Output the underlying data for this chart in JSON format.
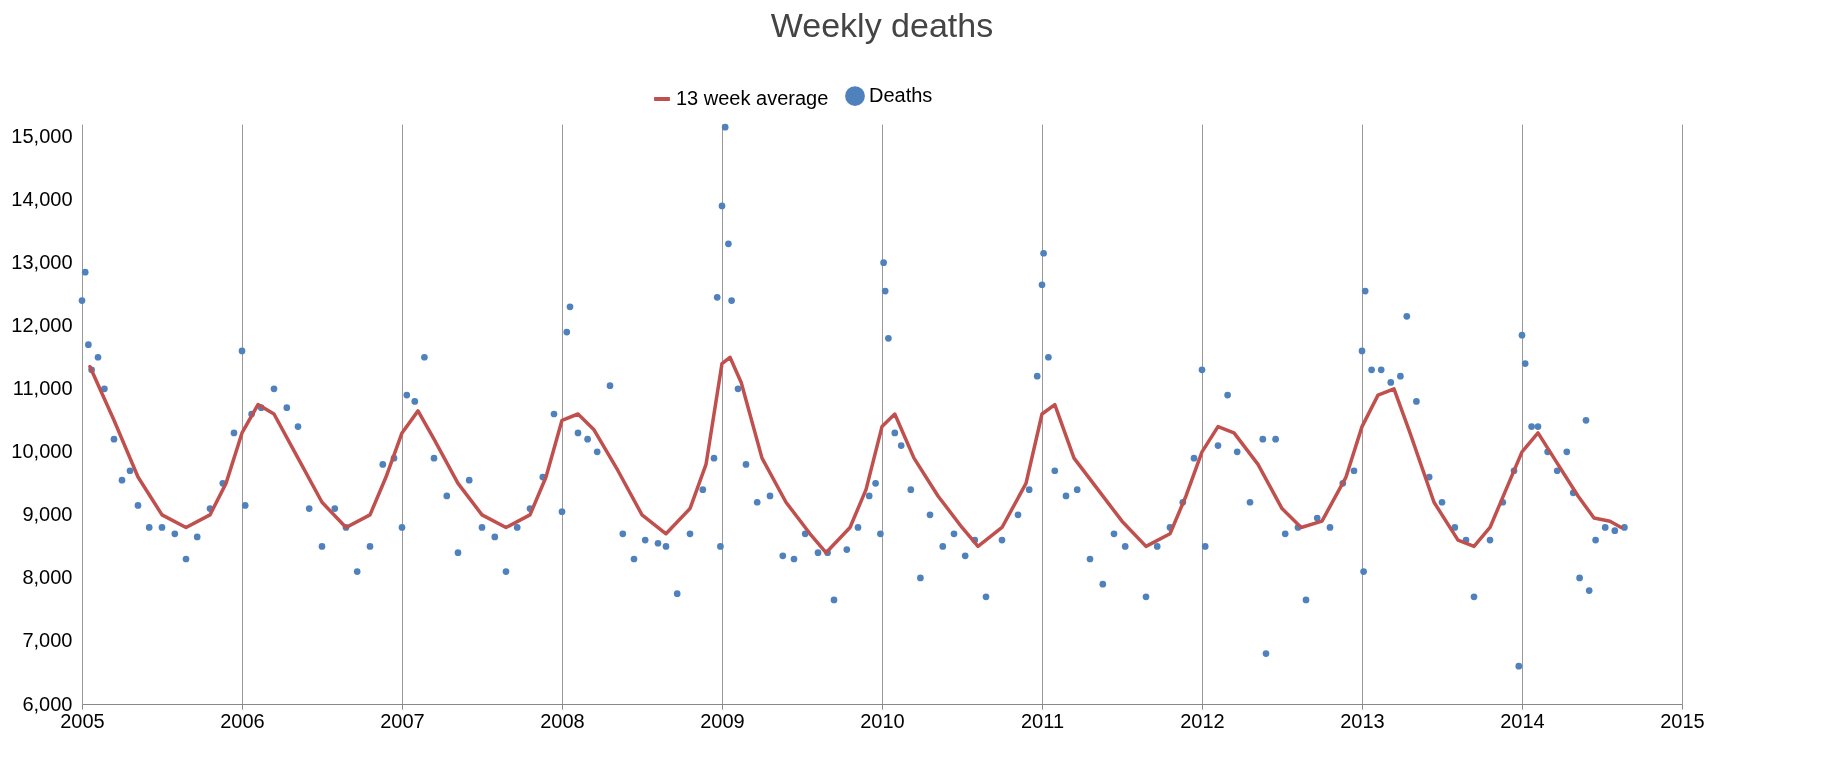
{
  "chart_data": {
    "type": "scatter",
    "title": "Weekly deaths",
    "xlim": [
      2005,
      2015
    ],
    "xticks": [
      2005,
      2006,
      2007,
      2008,
      2009,
      2010,
      2011,
      2012,
      2013,
      2014,
      2015
    ],
    "ylim": [
      6000,
      15200
    ],
    "yticks": [
      {
        "value": 6000,
        "label": "6,000"
      },
      {
        "value": 7000,
        "label": "7,000"
      },
      {
        "value": 8000,
        "label": "8,000"
      },
      {
        "value": 9000,
        "label": "9,000"
      },
      {
        "value": 10000,
        "label": "10,000"
      },
      {
        "value": 11000,
        "label": "11,000"
      },
      {
        "value": 12000,
        "label": "12,000"
      },
      {
        "value": 13000,
        "label": "13,000"
      },
      {
        "value": 14000,
        "label": "14,000"
      },
      {
        "value": 15000,
        "label": "15,000"
      }
    ],
    "grid": "x",
    "legend": "top",
    "series": [
      {
        "name": "13 week average",
        "type": "line",
        "color": "#c0504d",
        "x": [
          2005.05,
          2005.2,
          2005.35,
          2005.5,
          2005.65,
          2005.8,
          2005.9,
          2006.0,
          2006.1,
          2006.2,
          2006.35,
          2006.5,
          2006.65,
          2006.8,
          2006.9,
          2007.0,
          2007.1,
          2007.2,
          2007.35,
          2007.5,
          2007.65,
          2007.8,
          2007.9,
          2008.0,
          2008.1,
          2008.2,
          2008.35,
          2008.5,
          2008.65,
          2008.8,
          2008.9,
          2009.0,
          2009.05,
          2009.12,
          2009.25,
          2009.4,
          2009.55,
          2009.65,
          2009.8,
          2009.9,
          2010.0,
          2010.08,
          2010.2,
          2010.35,
          2010.5,
          2010.6,
          2010.75,
          2010.9,
          2011.0,
          2011.08,
          2011.2,
          2011.35,
          2011.5,
          2011.65,
          2011.8,
          2011.9,
          2012.0,
          2012.1,
          2012.2,
          2012.35,
          2012.5,
          2012.62,
          2012.75,
          2012.9,
          2013.0,
          2013.1,
          2013.2,
          2013.3,
          2013.45,
          2013.6,
          2013.7,
          2013.8,
          2013.9,
          2014.0,
          2014.1,
          2014.2,
          2014.35,
          2014.45,
          2014.55,
          2014.62
        ],
        "values": [
          11350,
          10500,
          9600,
          9000,
          8800,
          9000,
          9500,
          10300,
          10750,
          10600,
          9900,
          9200,
          8800,
          9000,
          9600,
          10300,
          10650,
          10200,
          9500,
          9000,
          8800,
          9000,
          9600,
          10500,
          10600,
          10350,
          9700,
          9000,
          8700,
          9100,
          9800,
          11400,
          11500,
          11100,
          9900,
          9200,
          8700,
          8400,
          8800,
          9400,
          10400,
          10600,
          9900,
          9300,
          8800,
          8500,
          8800,
          9500,
          10600,
          10750,
          9900,
          9400,
          8900,
          8500,
          8700,
          9300,
          10000,
          10400,
          10300,
          9800,
          9100,
          8800,
          8900,
          9600,
          10400,
          10900,
          11000,
          10300,
          9200,
          8600,
          8500,
          8800,
          9400,
          10000,
          10300,
          9900,
          9300,
          8950,
          8900,
          8800
        ]
      },
      {
        "name": "Deaths",
        "color": "#4f81bd",
        "x": [
          2005.0,
          2005.02,
          2005.04,
          2005.06,
          2005.1,
          2005.14,
          2005.2,
          2005.25,
          2005.3,
          2005.35,
          2005.42,
          2005.5,
          2005.58,
          2005.65,
          2005.72,
          2005.8,
          2005.88,
          2005.95,
          2006.0,
          2006.02,
          2006.06,
          2006.12,
          2006.2,
          2006.28,
          2006.35,
          2006.42,
          2006.5,
          2006.58,
          2006.65,
          2006.72,
          2006.8,
          2006.88,
          2006.95,
          2007.0,
          2007.03,
          2007.08,
          2007.14,
          2007.2,
          2007.28,
          2007.35,
          2007.42,
          2007.5,
          2007.58,
          2007.65,
          2007.72,
          2007.8,
          2007.88,
          2007.95,
          2008.0,
          2008.03,
          2008.05,
          2008.1,
          2008.16,
          2008.22,
          2008.3,
          2008.38,
          2008.45,
          2008.52,
          2008.6,
          2008.65,
          2008.72,
          2008.8,
          2008.88,
          2008.95,
          2008.97,
          2008.99,
          2009.0,
          2009.02,
          2009.04,
          2009.06,
          2009.1,
          2009.15,
          2009.22,
          2009.3,
          2009.38,
          2009.45,
          2009.52,
          2009.6,
          2009.66,
          2009.7,
          2009.78,
          2009.85,
          2009.92,
          2009.96,
          2009.99,
          2010.01,
          2010.02,
          2010.04,
          2010.08,
          2010.12,
          2010.18,
          2010.24,
          2010.3,
          2010.38,
          2010.45,
          2010.52,
          2010.58,
          2010.65,
          2010.75,
          2010.85,
          2010.92,
          2010.97,
          2011.0,
          2011.01,
          2011.04,
          2011.08,
          2011.15,
          2011.22,
          2011.3,
          2011.38,
          2011.45,
          2011.52,
          2011.65,
          2011.72,
          2011.8,
          2011.88,
          2011.95,
          2012.0,
          2012.02,
          2012.1,
          2012.16,
          2012.22,
          2012.3,
          2012.38,
          2012.4,
          2012.46,
          2012.52,
          2012.6,
          2012.65,
          2012.72,
          2012.8,
          2012.88,
          2012.95,
          2013.0,
          2013.01,
          2013.02,
          2013.06,
          2013.12,
          2013.18,
          2013.24,
          2013.28,
          2013.34,
          2013.42,
          2013.5,
          2013.58,
          2013.65,
          2013.7,
          2013.8,
          2013.88,
          2013.95,
          2013.98,
          2014.0,
          2014.02,
          2014.06,
          2014.1,
          2014.16,
          2014.22,
          2014.28,
          2014.32,
          2014.36,
          2014.4,
          2014.42,
          2014.46,
          2014.52,
          2014.58,
          2014.64
        ],
        "values": [
          12400,
          12850,
          11700,
          11300,
          11500,
          11000,
          10200,
          9550,
          9700,
          9150,
          8800,
          8800,
          8700,
          8300,
          8650,
          9100,
          9500,
          10300,
          11600,
          9150,
          10600,
          10700,
          11000,
          10700,
          10400,
          9100,
          8500,
          9100,
          8800,
          8100,
          8500,
          9800,
          9900,
          8800,
          10900,
          10800,
          11500,
          9900,
          9300,
          8400,
          9550,
          8800,
          8650,
          8100,
          8800,
          9100,
          9600,
          10600,
          9050,
          11900,
          12300,
          10300,
          10200,
          10000,
          11050,
          8700,
          8300,
          8600,
          8550,
          8500,
          7750,
          8700,
          9400,
          9900,
          12450,
          8500,
          13900,
          15150,
          13300,
          12400,
          11000,
          9800,
          9200,
          9300,
          8350,
          8300,
          8700,
          8400,
          8400,
          7650,
          8450,
          8800,
          9300,
          9500,
          8700,
          13000,
          12550,
          11800,
          10300,
          10100,
          9400,
          8000,
          9000,
          8500,
          8700,
          8350,
          8600,
          7700,
          8600,
          9000,
          9400,
          11200,
          12650,
          13150,
          11500,
          9700,
          9300,
          9400,
          8300,
          7900,
          8700,
          8500,
          7700,
          8500,
          8800,
          9200,
          9900,
          11300,
          8500,
          10100,
          10900,
          10000,
          9200,
          10200,
          6800,
          10200,
          8700,
          8800,
          7650,
          8950,
          8800,
          9500,
          9700,
          11600,
          8100,
          12550,
          11300,
          11300,
          11100,
          11200,
          12150,
          10800,
          9600,
          9200,
          8800,
          8600,
          7700,
          8600,
          9200,
          9700,
          6600,
          11850,
          11400,
          10400,
          10400,
          10000,
          9700,
          10000,
          9350,
          8000,
          10500,
          7800,
          8600,
          8800,
          8750,
          8800
        ]
      }
    ]
  }
}
